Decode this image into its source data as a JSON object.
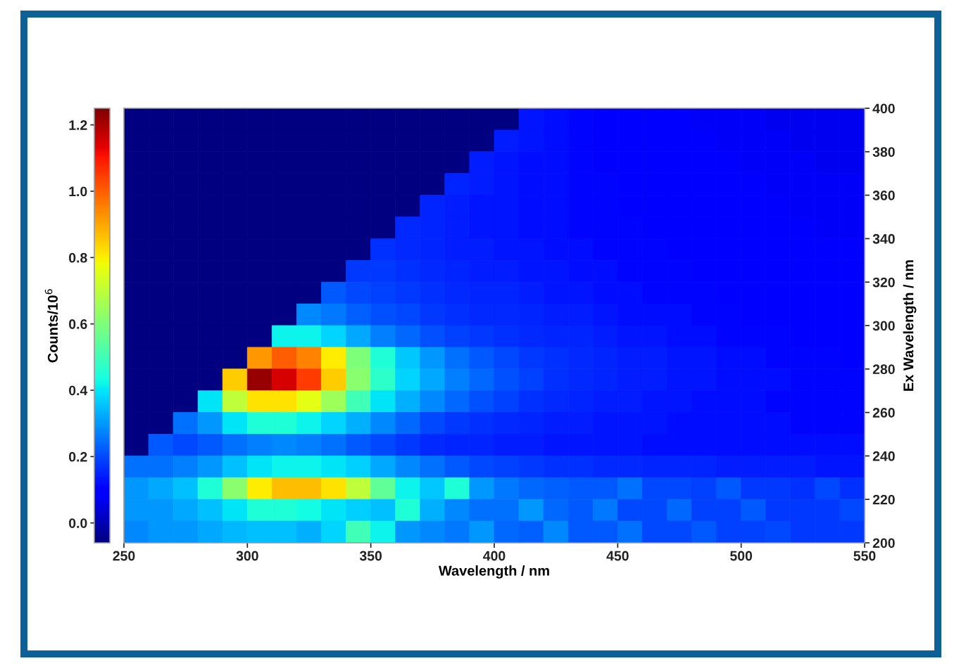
{
  "chart_data": {
    "type": "heatmap",
    "xlabel": "Wavelength / nm",
    "ylabel": "Ex Wavelength / nm",
    "clabel": "Counts/10$^{6}$",
    "xlim": [
      250,
      550
    ],
    "xticks": [
      250,
      300,
      350,
      400,
      450,
      500,
      550
    ],
    "ylim": [
      200,
      400
    ],
    "yticks": [
      200,
      220,
      240,
      260,
      280,
      300,
      320,
      340,
      360,
      380,
      400
    ],
    "clim": [
      -0.06,
      1.25
    ],
    "cticks": [
      {
        "value": 0,
        "label": "0.0"
      },
      0.2,
      0.4,
      0.6,
      0.8,
      {
        "value": 1,
        "label": "1.0"
      },
      1.2
    ],
    "cells": [
      [
        -0.06,
        -0.06,
        -0.06,
        -0.06,
        -0.06,
        -0.06,
        -0.06,
        -0.06,
        -0.06,
        -0.06,
        -0.06,
        -0.06,
        -0.06,
        -0.06,
        -0.06,
        -0.06,
        0.13,
        0.12,
        0.11,
        0.1,
        0.1,
        0.09,
        0.09,
        0.08,
        0.08,
        0.08,
        0.07,
        0.07,
        0.07,
        0.07
      ],
      [
        -0.06,
        -0.06,
        -0.06,
        -0.06,
        -0.06,
        -0.06,
        -0.06,
        -0.06,
        -0.06,
        -0.06,
        -0.06,
        -0.06,
        -0.06,
        -0.06,
        -0.06,
        0.14,
        0.13,
        0.12,
        0.11,
        0.1,
        0.1,
        0.09,
        0.09,
        0.09,
        0.08,
        0.08,
        0.08,
        0.07,
        0.07,
        0.07
      ],
      [
        -0.06,
        -0.06,
        -0.06,
        -0.06,
        -0.06,
        -0.06,
        -0.06,
        -0.06,
        -0.06,
        -0.06,
        -0.06,
        -0.06,
        -0.06,
        -0.06,
        0.14,
        0.13,
        0.12,
        0.12,
        0.11,
        0.1,
        0.1,
        0.1,
        0.09,
        0.09,
        0.09,
        0.08,
        0.08,
        0.08,
        0.07,
        0.07
      ],
      [
        -0.06,
        -0.06,
        -0.06,
        -0.06,
        -0.06,
        -0.06,
        -0.06,
        -0.06,
        -0.06,
        -0.06,
        -0.06,
        -0.06,
        -0.06,
        0.15,
        0.14,
        0.13,
        0.12,
        0.12,
        0.11,
        0.11,
        0.1,
        0.1,
        0.1,
        0.09,
        0.09,
        0.09,
        0.08,
        0.08,
        0.08,
        0.08
      ],
      [
        -0.06,
        -0.06,
        -0.06,
        -0.06,
        -0.06,
        -0.06,
        -0.06,
        -0.06,
        -0.06,
        -0.06,
        -0.06,
        -0.06,
        0.15,
        0.14,
        0.13,
        0.13,
        0.12,
        0.12,
        0.11,
        0.11,
        0.1,
        0.1,
        0.1,
        0.1,
        0.09,
        0.09,
        0.09,
        0.08,
        0.08,
        0.08
      ],
      [
        -0.06,
        -0.06,
        -0.06,
        -0.06,
        -0.06,
        -0.06,
        -0.06,
        -0.06,
        -0.06,
        -0.06,
        -0.06,
        0.16,
        0.15,
        0.14,
        0.13,
        0.13,
        0.12,
        0.12,
        0.11,
        0.11,
        0.11,
        0.1,
        0.1,
        0.1,
        0.1,
        0.09,
        0.09,
        0.09,
        0.08,
        0.08
      ],
      [
        -0.06,
        -0.06,
        -0.06,
        -0.06,
        -0.06,
        -0.06,
        -0.06,
        -0.06,
        -0.06,
        -0.06,
        0.17,
        0.16,
        0.15,
        0.14,
        0.14,
        0.13,
        0.13,
        0.12,
        0.12,
        0.11,
        0.11,
        0.11,
        0.1,
        0.1,
        0.1,
        0.1,
        0.09,
        0.09,
        0.09,
        0.09
      ],
      [
        -0.06,
        -0.06,
        -0.06,
        -0.06,
        -0.06,
        -0.06,
        -0.06,
        -0.06,
        -0.06,
        0.18,
        0.18,
        0.17,
        0.16,
        0.15,
        0.14,
        0.14,
        0.13,
        0.13,
        0.12,
        0.12,
        0.11,
        0.11,
        0.11,
        0.1,
        0.1,
        0.1,
        0.1,
        0.09,
        0.09,
        0.09
      ],
      [
        -0.06,
        -0.06,
        -0.06,
        -0.06,
        -0.06,
        -0.06,
        -0.06,
        -0.06,
        0.22,
        0.2,
        0.19,
        0.18,
        0.17,
        0.16,
        0.15,
        0.15,
        0.14,
        0.13,
        0.13,
        0.12,
        0.12,
        0.11,
        0.11,
        0.11,
        0.1,
        0.1,
        0.1,
        0.1,
        0.09,
        0.09
      ],
      [
        -0.06,
        -0.06,
        -0.06,
        -0.06,
        -0.06,
        -0.06,
        -0.06,
        0.28,
        0.26,
        0.23,
        0.21,
        0.2,
        0.18,
        0.17,
        0.16,
        0.16,
        0.15,
        0.14,
        0.14,
        0.13,
        0.12,
        0.12,
        0.12,
        0.11,
        0.11,
        0.1,
        0.1,
        0.1,
        0.1,
        0.1
      ],
      [
        -0.06,
        -0.06,
        -0.06,
        -0.06,
        -0.06,
        -0.06,
        0.42,
        0.42,
        0.38,
        0.32,
        0.27,
        0.24,
        0.21,
        0.19,
        0.18,
        0.17,
        0.16,
        0.15,
        0.15,
        0.14,
        0.13,
        0.13,
        0.12,
        0.12,
        0.11,
        0.11,
        0.11,
        0.1,
        0.1,
        0.1
      ],
      [
        -0.06,
        -0.06,
        -0.06,
        -0.06,
        -0.06,
        0.92,
        1.0,
        0.95,
        0.8,
        0.6,
        0.45,
        0.36,
        0.3,
        0.25,
        0.22,
        0.2,
        0.18,
        0.17,
        0.16,
        0.15,
        0.14,
        0.14,
        0.13,
        0.13,
        0.12,
        0.12,
        0.11,
        0.11,
        0.11,
        0.1
      ],
      [
        -0.06,
        -0.06,
        -0.06,
        -0.06,
        0.85,
        1.22,
        1.15,
        1.05,
        0.85,
        0.62,
        0.47,
        0.38,
        0.32,
        0.27,
        0.24,
        0.21,
        0.19,
        0.17,
        0.16,
        0.15,
        0.14,
        0.14,
        0.13,
        0.13,
        0.12,
        0.12,
        0.12,
        0.11,
        0.11,
        0.11
      ],
      [
        -0.06,
        -0.06,
        -0.06,
        0.4,
        0.7,
        0.82,
        0.82,
        0.76,
        0.65,
        0.5,
        0.4,
        0.33,
        0.28,
        0.24,
        0.21,
        0.19,
        0.17,
        0.16,
        0.15,
        0.14,
        0.14,
        0.13,
        0.13,
        0.12,
        0.12,
        0.12,
        0.11,
        0.11,
        0.11,
        0.11
      ],
      [
        -0.06,
        -0.06,
        0.25,
        0.3,
        0.4,
        0.45,
        0.45,
        0.42,
        0.38,
        0.33,
        0.28,
        0.24,
        0.2,
        0.18,
        0.17,
        0.16,
        0.15,
        0.14,
        0.14,
        0.13,
        0.13,
        0.13,
        0.12,
        0.12,
        0.12,
        0.12,
        0.12,
        0.11,
        0.11,
        0.11
      ],
      [
        -0.06,
        0.22,
        0.2,
        0.22,
        0.25,
        0.27,
        0.28,
        0.27,
        0.25,
        0.22,
        0.2,
        0.18,
        0.16,
        0.15,
        0.15,
        0.14,
        0.14,
        0.13,
        0.13,
        0.13,
        0.13,
        0.12,
        0.12,
        0.12,
        0.12,
        0.12,
        0.12,
        0.12,
        0.12,
        0.12
      ],
      [
        0.25,
        0.25,
        0.27,
        0.3,
        0.35,
        0.4,
        0.42,
        0.42,
        0.4,
        0.37,
        0.32,
        0.28,
        0.25,
        0.22,
        0.2,
        0.19,
        0.18,
        0.17,
        0.17,
        0.16,
        0.16,
        0.15,
        0.15,
        0.15,
        0.14,
        0.14,
        0.14,
        0.14,
        0.13,
        0.13
      ],
      [
        0.3,
        0.32,
        0.35,
        0.45,
        0.62,
        0.8,
        0.87,
        0.87,
        0.82,
        0.7,
        0.55,
        0.42,
        0.36,
        0.45,
        0.3,
        0.26,
        0.24,
        0.23,
        0.22,
        0.22,
        0.25,
        0.2,
        0.2,
        0.19,
        0.22,
        0.18,
        0.18,
        0.17,
        0.2,
        0.17
      ],
      [
        0.3,
        0.3,
        0.32,
        0.35,
        0.4,
        0.45,
        0.45,
        0.43,
        0.4,
        0.37,
        0.35,
        0.45,
        0.33,
        0.28,
        0.25,
        0.25,
        0.3,
        0.24,
        0.22,
        0.26,
        0.2,
        0.2,
        0.24,
        0.19,
        0.19,
        0.22,
        0.18,
        0.18,
        0.18,
        0.2
      ],
      [
        0.28,
        0.3,
        0.3,
        0.32,
        0.34,
        0.35,
        0.35,
        0.33,
        0.38,
        0.5,
        0.42,
        0.3,
        0.28,
        0.26,
        0.3,
        0.24,
        0.23,
        0.28,
        0.22,
        0.22,
        0.25,
        0.2,
        0.2,
        0.22,
        0.19,
        0.19,
        0.2,
        0.18,
        0.18,
        0.18
      ]
    ]
  }
}
